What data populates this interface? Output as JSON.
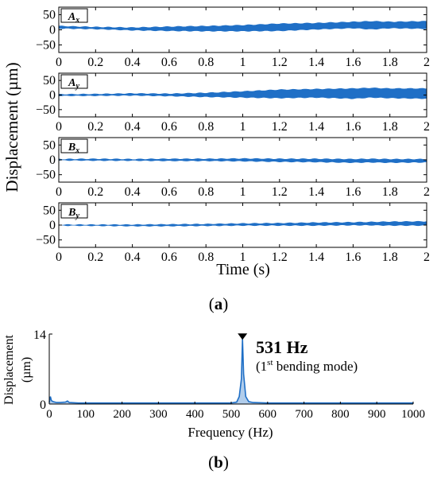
{
  "figure": {
    "panel_a_label": "a",
    "panel_b_label": "b",
    "colors": {
      "signal": "#1f6fc6",
      "axis": "#000000",
      "marker": "#000000",
      "background": "#ffffff"
    }
  },
  "chart_data": [
    {
      "type": "area",
      "panel": "a",
      "title": "",
      "ylabel": "Displacement (µm)",
      "xlabel": "Time (s)",
      "xlim": [
        0,
        2
      ],
      "x_ticks": [
        "0",
        "0.2",
        "0.4",
        "0.6",
        "0.8",
        "1",
        "1.2",
        "1.4",
        "1.6",
        "1.8",
        "2"
      ],
      "grid": false,
      "series": [
        {
          "name": "Ax",
          "label_main": "A",
          "label_sub": "x",
          "ylim": [
            -75,
            75
          ],
          "y_ticks": [
            "50",
            "0",
            "−50"
          ],
          "y_tick_values": [
            50,
            0,
            -50
          ],
          "envelope": {
            "x": [
              0,
              0.2,
              0.4,
              0.6,
              0.8,
              1.0,
              1.2,
              1.4,
              1.6,
              1.7,
              1.8,
              2.0
            ],
            "upper": [
              12,
              9,
              7,
              10,
              12,
              15,
              20,
              22,
              26,
              28,
              26,
              28
            ],
            "lower": [
              5,
              3,
              -1,
              -3,
              -4,
              -4,
              -3,
              2,
              6,
              2,
              6,
              4
            ]
          }
        },
        {
          "name": "Ay",
          "label_main": "A",
          "label_sub": "y",
          "ylim": [
            -75,
            75
          ],
          "y_ticks": [
            "50",
            "0",
            "−50"
          ],
          "y_tick_values": [
            50,
            0,
            -50
          ],
          "envelope": {
            "x": [
              0,
              0.2,
              0.4,
              0.6,
              0.8,
              1.0,
              1.2,
              1.4,
              1.6,
              1.7,
              1.8,
              2.0
            ],
            "upper": [
              2,
              3,
              5,
              4,
              7,
              12,
              18,
              20,
              22,
              24,
              22,
              22
            ],
            "lower": [
              -2,
              -2,
              -1,
              -3,
              -6,
              -8,
              -10,
              -8,
              -12,
              -8,
              -10,
              -12
            ]
          }
        },
        {
          "name": "Bx",
          "label_main": "B",
          "label_sub": "x",
          "ylim": [
            -75,
            75
          ],
          "y_ticks": [
            "50",
            "0",
            "−50"
          ],
          "y_tick_values": [
            50,
            0,
            -50
          ],
          "envelope": {
            "x": [
              0,
              0.2,
              0.4,
              0.6,
              0.8,
              1.0,
              1.2,
              1.4,
              1.6,
              1.7,
              1.8,
              2.0
            ],
            "upper": [
              2,
              3,
              2,
              3,
              3,
              4,
              3,
              3,
              2,
              3,
              2,
              2
            ],
            "lower": [
              -1,
              -2,
              -2,
              -3,
              -3,
              -4,
              -6,
              -7,
              -9,
              -8,
              -9,
              -8
            ]
          }
        },
        {
          "name": "By",
          "label_main": "B",
          "label_sub": "y",
          "ylim": [
            -75,
            75
          ],
          "y_ticks": [
            "50",
            "0",
            "−50"
          ],
          "y_tick_values": [
            50,
            0,
            -50
          ],
          "envelope": {
            "x": [
              0,
              0.2,
              0.4,
              0.6,
              0.8,
              1.0,
              1.2,
              1.4,
              1.6,
              1.7,
              1.8,
              2.0
            ],
            "upper": [
              1,
              1,
              1,
              2,
              3,
              5,
              6,
              8,
              9,
              10,
              11,
              12
            ],
            "lower": [
              -1,
              -2,
              -3,
              -3,
              -2,
              -1,
              -1,
              -1,
              0,
              0,
              -1,
              -1
            ]
          }
        }
      ]
    },
    {
      "type": "line",
      "panel": "b",
      "title": "",
      "ylabel_line1": "Displacement",
      "ylabel_line2": "(µm)",
      "xlabel": "Frequency (Hz)",
      "xlim": [
        0,
        1000
      ],
      "ylim": [
        0,
        14
      ],
      "x_ticks": [
        "0",
        "100",
        "200",
        "300",
        "400",
        "500",
        "600",
        "700",
        "800",
        "900",
        "1000"
      ],
      "y_ticks": [
        "14",
        "0"
      ],
      "y_tick_values": [
        14,
        0
      ],
      "grid": false,
      "series": [
        {
          "x": [
            0,
            3,
            6,
            10,
            20,
            30,
            45,
            50,
            55,
            80,
            150,
            300,
            450,
            500,
            515,
            522,
            528,
            531,
            534,
            540,
            548,
            560,
            600,
            700,
            800,
            900,
            1000
          ],
          "y": [
            0.3,
            1.5,
            0.7,
            0.5,
            0.3,
            0.3,
            0.4,
            0.6,
            0.3,
            0.2,
            0.2,
            0.2,
            0.2,
            0.2,
            0.4,
            1.5,
            5.0,
            13.0,
            6.0,
            1.5,
            0.5,
            0.3,
            0.2,
            0.2,
            0.2,
            0.2,
            0.2
          ]
        }
      ],
      "peak": {
        "x": 531,
        "y": 13.0
      },
      "annotation": {
        "value_text": "531 Hz",
        "mode_prefix": "(1",
        "mode_sup": "st",
        "mode_suffix": " bending mode)"
      }
    }
  ]
}
